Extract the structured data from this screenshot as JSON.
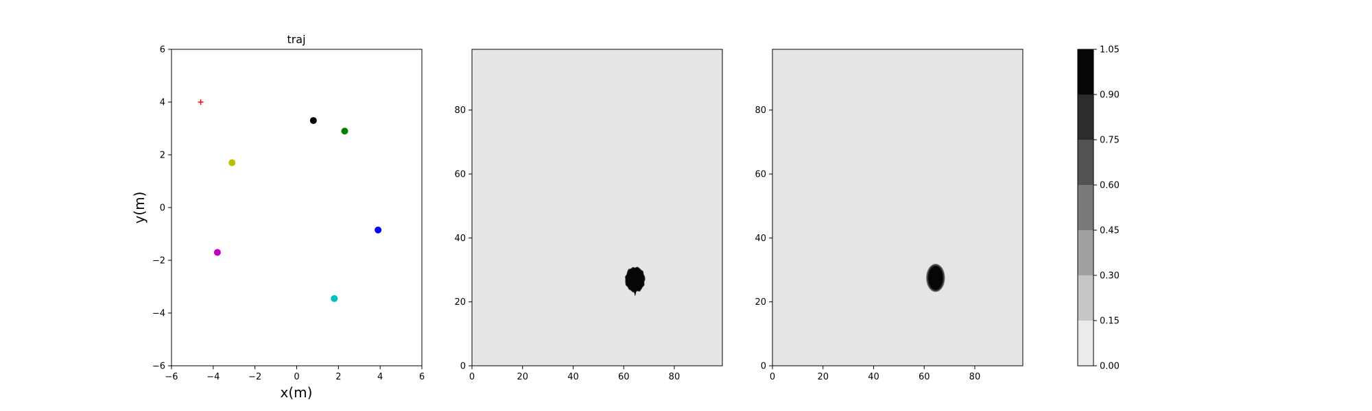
{
  "chart_data": [
    {
      "type": "scatter",
      "title": "traj",
      "xlabel": "x(m)",
      "ylabel": "y(m)",
      "xlim": [
        -6,
        6
      ],
      "ylim": [
        -6,
        6
      ],
      "xticks": [
        -6,
        -4,
        -2,
        0,
        2,
        4,
        6
      ],
      "yticks": [
        -6,
        -4,
        -2,
        0,
        2,
        4,
        6
      ],
      "grid": false,
      "points": [
        {
          "x": -4.6,
          "y": 4.0,
          "marker": "plus",
          "color": "#ff0000"
        },
        {
          "x": 0.8,
          "y": 3.3,
          "marker": "dot",
          "color": "#000000"
        },
        {
          "x": 2.3,
          "y": 2.9,
          "marker": "dot",
          "color": "#008000"
        },
        {
          "x": -3.1,
          "y": 1.7,
          "marker": "dot",
          "color": "#bfbf00"
        },
        {
          "x": 3.9,
          "y": -0.85,
          "marker": "dot",
          "color": "#0000ff"
        },
        {
          "x": -3.8,
          "y": -1.7,
          "marker": "dot",
          "color": "#bf00bf"
        },
        {
          "x": 1.8,
          "y": -3.45,
          "marker": "dot",
          "color": "#00bfbf"
        }
      ]
    },
    {
      "type": "heatmap",
      "title": "",
      "xlim": [
        0,
        99
      ],
      "ylim": [
        0,
        99
      ],
      "xticks": [
        0,
        20,
        40,
        60,
        80
      ],
      "yticks": [
        0,
        20,
        40,
        60,
        80
      ],
      "background_value": 0.05,
      "blob": {
        "cx": 64.5,
        "cy": 27,
        "rx": 4,
        "ry": 4,
        "value": 1.0,
        "edge": "ragged"
      }
    },
    {
      "type": "heatmap",
      "title": "",
      "xlim": [
        0,
        99
      ],
      "ylim": [
        0,
        99
      ],
      "xticks": [
        0,
        20,
        40,
        60,
        80
      ],
      "yticks": [
        0,
        20,
        40,
        60,
        80
      ],
      "background_value": 0.05,
      "blob": {
        "cx": 64.5,
        "cy": 27.5,
        "rx": 3.2,
        "ry": 4,
        "value": 1.0,
        "edge": "smooth"
      }
    }
  ],
  "colorbar": {
    "levels": [
      0.0,
      0.15,
      0.3,
      0.45,
      0.6,
      0.75,
      0.9,
      1.05
    ],
    "tick_labels": [
      "0.00",
      "0.15",
      "0.30",
      "0.45",
      "0.60",
      "0.75",
      "0.90",
      "1.05"
    ],
    "colors": [
      "#ebebeb",
      "#c6c6c6",
      "#a0a0a0",
      "#7a7a7a",
      "#535353",
      "#2c2c2c",
      "#060606"
    ]
  }
}
